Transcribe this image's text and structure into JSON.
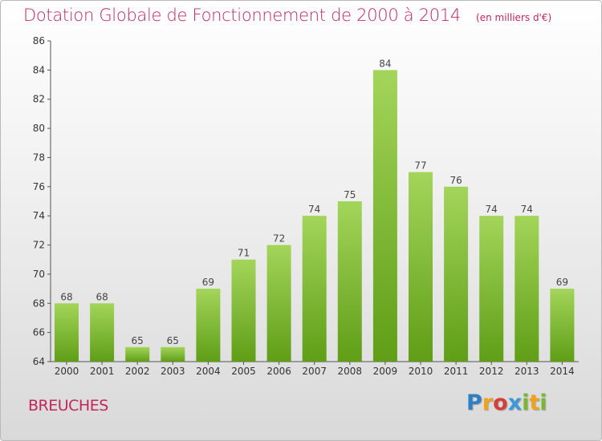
{
  "header": {
    "title": "Dotation Globale de Fonctionnement de 2000 à 2014",
    "unit": "(en milliers d'€)"
  },
  "footer": {
    "commune": "BREUCHES",
    "logo_text": "Proxiti",
    "logo_letters": [
      {
        "ch": "P",
        "color": "#2f7fc4"
      },
      {
        "ch": "r",
        "color": "#f0a21a"
      },
      {
        "ch": "o",
        "color": "#d43f3a"
      },
      {
        "ch": "x",
        "color": "#3a9ad9"
      },
      {
        "ch": "i",
        "color": "#7ab834"
      },
      {
        "ch": "t",
        "color": "#f0a21a"
      },
      {
        "ch": "i",
        "color": "#7ab834"
      }
    ]
  },
  "colors": {
    "title": "#c0285a",
    "bar_light": "#a3d55a",
    "bar_dark": "#5f9e16"
  },
  "chart_data": {
    "type": "bar",
    "title": "Dotation Globale de Fonctionnement de 2000 à 2014",
    "subtitle": "(en milliers d'€)",
    "xlabel": "",
    "ylabel": "",
    "categories": [
      "2000",
      "2001",
      "2002",
      "2003",
      "2004",
      "2005",
      "2006",
      "2007",
      "2008",
      "2009",
      "2010",
      "2011",
      "2012",
      "2013",
      "2014"
    ],
    "values": [
      68,
      68,
      65,
      65,
      69,
      71,
      72,
      74,
      75,
      84,
      77,
      76,
      74,
      74,
      69
    ],
    "ylim": [
      64,
      86
    ],
    "yticks": [
      64,
      66,
      68,
      70,
      72,
      74,
      76,
      78,
      80,
      82,
      84,
      86
    ],
    "grid": false,
    "legend": "none"
  }
}
